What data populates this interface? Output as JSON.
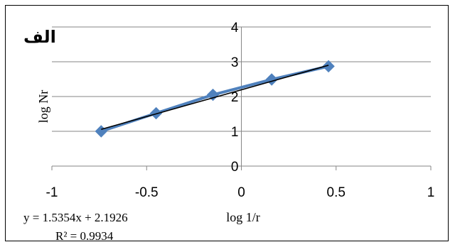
{
  "chart_data": {
    "type": "scatter",
    "panel_label": "الف",
    "xlabel": "log 1/r",
    "ylabel": "log Nr",
    "xlim": [
      -1,
      1
    ],
    "ylim": [
      0,
      4
    ],
    "x_ticks": [
      "-1",
      "-0.5",
      "0",
      "0.5",
      "1"
    ],
    "y_ticks": [
      "0",
      "1",
      "2",
      "3",
      "4"
    ],
    "grid": "horizontal",
    "series": [
      {
        "marker": "diamond",
        "color": "#4F81BD",
        "x": [
          -0.74,
          -0.45,
          -0.15,
          0.16,
          0.46
        ],
        "y": [
          1.0,
          1.52,
          2.05,
          2.49,
          2.87
        ]
      }
    ],
    "trendline": {
      "type": "linear",
      "slope": 1.5354,
      "intercept": 2.1926,
      "color": "#000000",
      "equation": "y = 1.5354x + 2.1926",
      "r_squared": "R² = 0.9934"
    }
  }
}
